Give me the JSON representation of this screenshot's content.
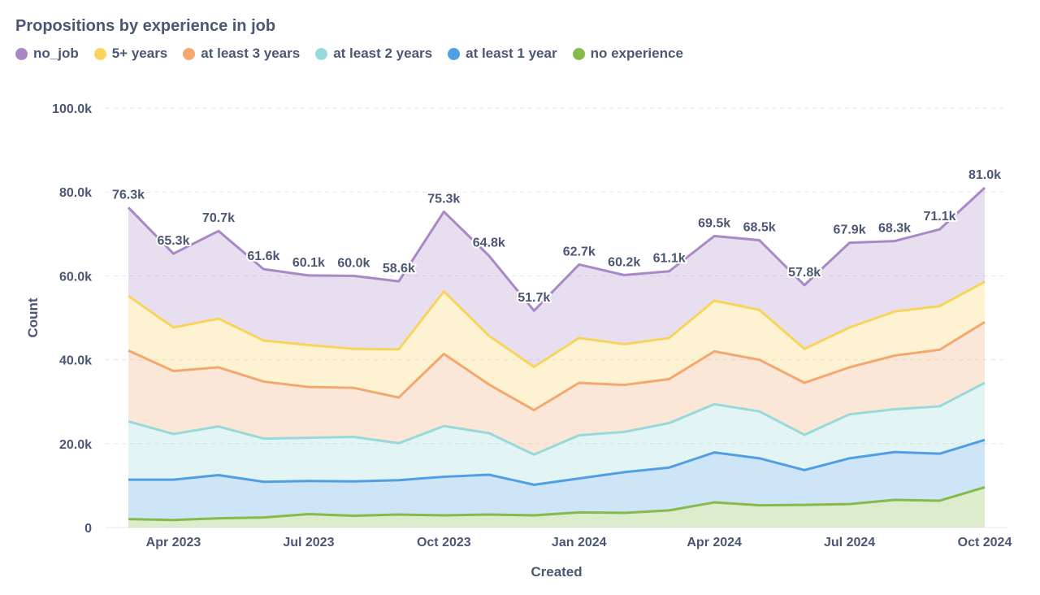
{
  "chart_data": {
    "type": "area",
    "stacked": true,
    "title": "Propositions by experience in job",
    "xlabel": "Created",
    "ylabel": "Count",
    "ylim": [
      0,
      100000
    ],
    "grid": true,
    "legend_position": "top-left",
    "x": [
      "2023-03",
      "2023-04",
      "2023-05",
      "2023-06",
      "2023-07",
      "2023-08",
      "2023-09",
      "2023-10",
      "2023-11",
      "2023-12",
      "2024-01",
      "2024-02",
      "2024-03",
      "2024-04",
      "2024-05",
      "2024-06",
      "2024-07",
      "2024-08",
      "2024-09",
      "2024-10"
    ],
    "x_ticks": [
      "Apr 2023",
      "Jul 2023",
      "Oct 2023",
      "Jan 2024",
      "Apr 2024",
      "Jul 2024",
      "Oct 2024"
    ],
    "y_ticks": [
      "0",
      "20.0k",
      "40.0k",
      "60.0k",
      "80.0k",
      "100.0k"
    ],
    "series": [
      {
        "name": "no experience",
        "color": "#84bb4c",
        "values": [
          2000,
          1800,
          2200,
          2400,
          3200,
          2800,
          3100,
          2900,
          3100,
          2900,
          3600,
          3500,
          4100,
          6000,
          5300,
          5400,
          5600,
          6600,
          6400,
          9600
        ]
      },
      {
        "name": "at least 1 year",
        "color": "#509ee3",
        "values": [
          9400,
          9600,
          10300,
          8500,
          7900,
          8200,
          8200,
          9200,
          9500,
          7300,
          8100,
          9700,
          10200,
          11900,
          11200,
          8300,
          10900,
          11400,
          11200,
          11300
        ]
      },
      {
        "name": "at least 2 years",
        "color": "#98d9d9",
        "values": [
          13900,
          10900,
          11600,
          10300,
          10300,
          10600,
          8800,
          12100,
          9900,
          7200,
          10300,
          9600,
          10600,
          11500,
          11200,
          8400,
          10500,
          10200,
          11300,
          13600
        ]
      },
      {
        "name": "at least 3 years",
        "color": "#f2a86f",
        "values": [
          16900,
          15000,
          14100,
          13600,
          12100,
          11700,
          10900,
          17200,
          11600,
          10600,
          12500,
          11200,
          10500,
          12600,
          12300,
          12400,
          11200,
          12800,
          13500,
          14500
        ]
      },
      {
        "name": "5+ years",
        "color": "#f9d45c",
        "values": [
          13000,
          10400,
          11600,
          9800,
          10000,
          9300,
          11500,
          14900,
          11600,
          10300,
          10700,
          9700,
          9800,
          12100,
          11900,
          8100,
          9500,
          10500,
          10400,
          9600
        ]
      },
      {
        "name": "no_job",
        "color": "#a989c5",
        "values": [
          21100,
          17600,
          20900,
          17000,
          16600,
          17400,
          16200,
          19000,
          19100,
          13400,
          17500,
          16500,
          15900,
          15400,
          16600,
          15200,
          20200,
          16800,
          18300,
          22400
        ]
      }
    ],
    "total_labels": [
      "76.3k",
      "65.3k",
      "70.7k",
      "61.6k",
      "60.1k",
      "60.0k",
      "58.6k",
      "75.3k",
      "64.8k",
      "51.7k",
      "62.7k",
      "60.2k",
      "61.1k",
      "69.5k",
      "68.5k",
      "57.8k",
      "67.9k",
      "68.3k",
      "71.1k",
      "81.0k"
    ]
  }
}
